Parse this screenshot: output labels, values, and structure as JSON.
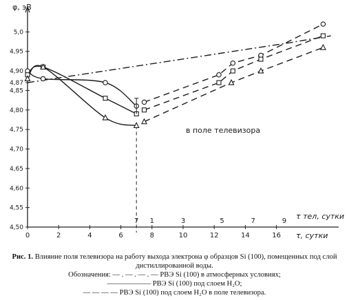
{
  "chart_data": {
    "type": "line",
    "ylabel": "φ, эВ",
    "xlabel_top": "τ тел, сутки",
    "xlabel_bottom": "τ, сутки",
    "ylim": [
      4.5,
      5.05
    ],
    "xlim": [
      0,
      20
    ],
    "y_ticks": [
      {
        "value": 4.5,
        "label": "4,50"
      },
      {
        "value": 4.55,
        "label": "4,55"
      },
      {
        "value": 4.6,
        "label": "4,60"
      },
      {
        "value": 4.65,
        "label": "4,65"
      },
      {
        "value": 4.7,
        "label": "4,70"
      },
      {
        "value": 4.75,
        "label": "4,75"
      },
      {
        "value": 4.8,
        "label": "4,80"
      },
      {
        "value": 4.85,
        "label": "4,85"
      },
      {
        "value": 4.87,
        "label": "4,87"
      },
      {
        "value": 4.9,
        "label": "4,90"
      },
      {
        "value": 4.95,
        "label": "4,95"
      },
      {
        "value": 5.0,
        "label": "5,0"
      }
    ],
    "x_ticks_bottom": [
      {
        "value": 0,
        "label": "0"
      },
      {
        "value": 2,
        "label": "2"
      },
      {
        "value": 4,
        "label": "4"
      },
      {
        "value": 6,
        "label": "6"
      },
      {
        "value": 8,
        "label": "8"
      },
      {
        "value": 10,
        "label": "10"
      },
      {
        "value": 12,
        "label": "12"
      },
      {
        "value": 14,
        "label": "14"
      },
      {
        "value": 16,
        "label": "16"
      }
    ],
    "x_ticks_top": [
      {
        "value": 7,
        "label": "7"
      },
      {
        "value": 8,
        "label": "1"
      },
      {
        "value": 10,
        "label": "3"
      },
      {
        "value": 12.5,
        "label": "5"
      },
      {
        "value": 14.5,
        "label": "7"
      },
      {
        "value": 16.5,
        "label": "9"
      }
    ],
    "annotation": "в поле телевизора",
    "series": [
      {
        "line": "dashdot",
        "points": [
          [
            0,
            4.87
          ],
          [
            16.5,
            4.97
          ],
          [
            19.5,
            4.99
          ]
        ]
      },
      {
        "line": "solid",
        "marker": "circle",
        "points": [
          [
            0,
            4.9
          ],
          [
            1,
            4.88
          ],
          [
            5,
            4.87
          ],
          [
            7,
            4.81
          ]
        ]
      },
      {
        "line": "solid",
        "marker": "square",
        "points": [
          [
            0,
            4.89
          ],
          [
            1,
            4.91
          ],
          [
            5,
            4.83
          ],
          [
            7,
            4.79
          ]
        ]
      },
      {
        "line": "solid",
        "marker": "triangle",
        "points": [
          [
            0,
            4.88
          ],
          [
            1,
            4.91
          ],
          [
            5,
            4.78
          ],
          [
            7,
            4.76
          ]
        ]
      },
      {
        "line": "dashed",
        "marker": "circle",
        "points": [
          [
            7.5,
            4.82
          ],
          [
            12.3,
            4.89
          ],
          [
            13.2,
            4.92
          ],
          [
            15,
            4.94
          ],
          [
            19,
            5.02
          ]
        ]
      },
      {
        "line": "dashed",
        "marker": "square",
        "points": [
          [
            7.5,
            4.8
          ],
          [
            12.3,
            4.87
          ],
          [
            13.2,
            4.9
          ],
          [
            15,
            4.93
          ],
          [
            19,
            4.99
          ]
        ]
      },
      {
        "line": "dashed",
        "marker": "triangle",
        "points": [
          [
            7.5,
            4.77
          ],
          [
            13.1,
            4.87
          ],
          [
            15,
            4.9
          ],
          [
            19,
            4.96
          ]
        ]
      }
    ]
  },
  "caption": {
    "prefix": "Рис. 1.",
    "text": "Влияние поля телевизора на работу выхода электрона φ образцов Si (100), помещенных под слой дистиллированной воды.",
    "legend_title": "Обозначения:",
    "legend_items": [
      {
        "symbol": "— . — . — . —",
        "text": "РВЭ Si (100) в атмосферных условиях;"
      },
      {
        "symbol": "——————",
        "text": "РВЭ Si (100) под слоем H₂O;"
      },
      {
        "symbol": "— — — —",
        "text": "РВЭ Si (100) под слоем H₂O в поле телевизора."
      }
    ]
  }
}
